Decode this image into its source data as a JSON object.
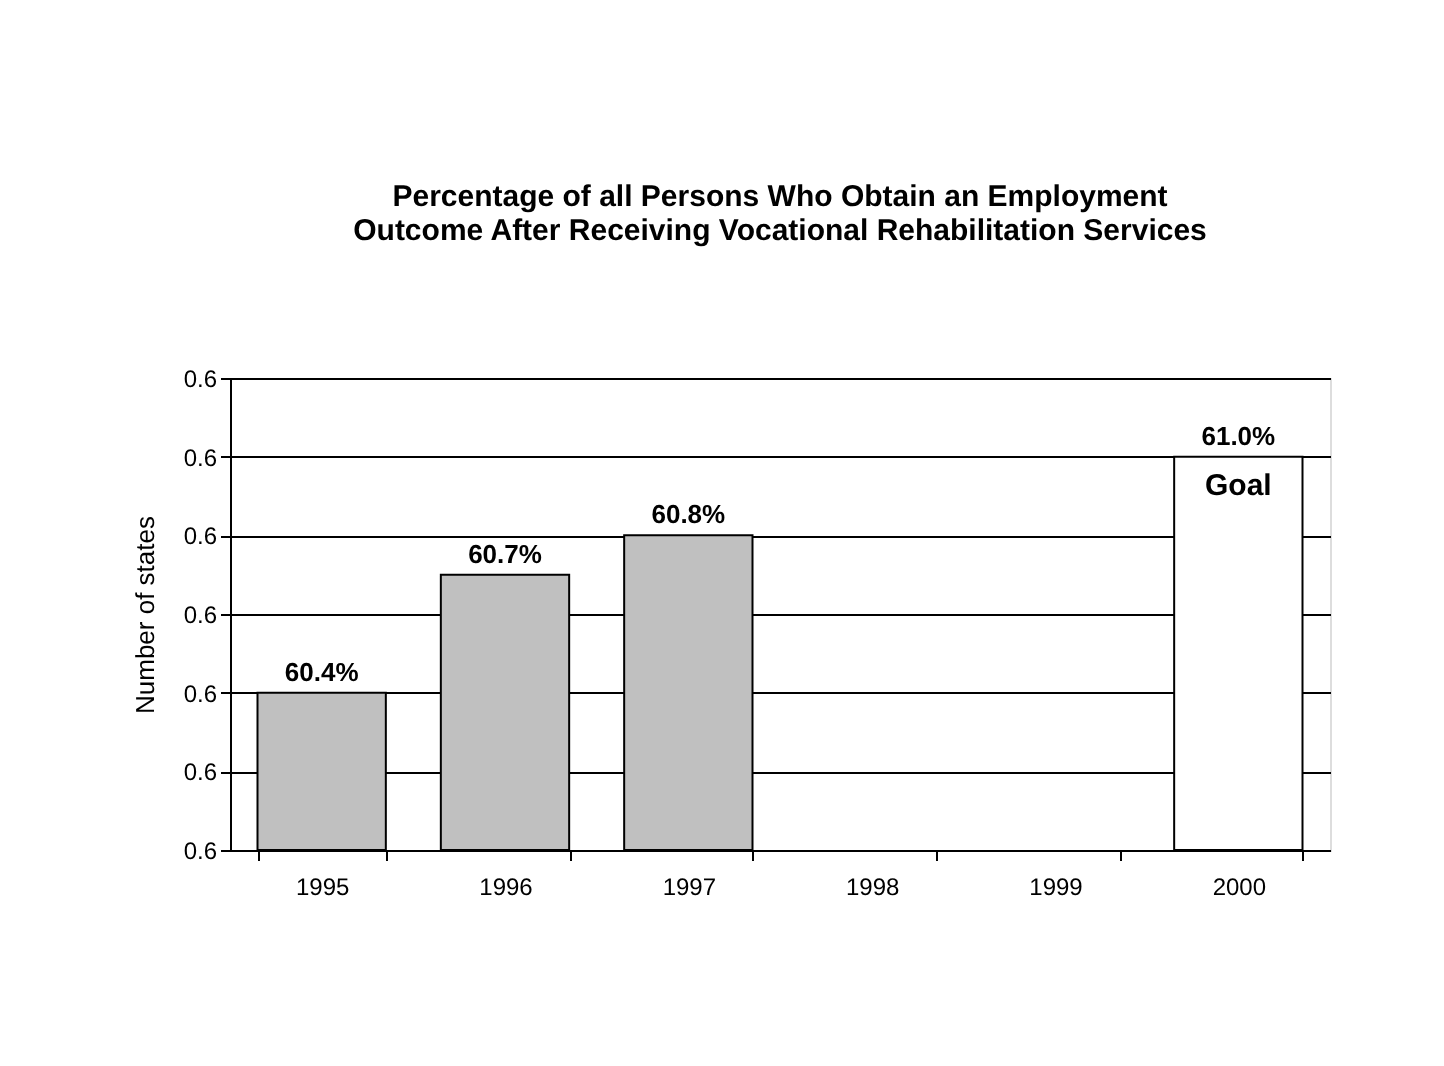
{
  "chart_data": {
    "type": "bar",
    "title": [
      "Percentage of all Persons Who Obtain an Employment",
      "Outcome After Receiving Vocational Rehabilitation Services"
    ],
    "ylabel": "Number of states",
    "categories": [
      "1995",
      "1996",
      "1997",
      "1998",
      "1999",
      "2000"
    ],
    "values": [
      0.604,
      0.607,
      0.608,
      null,
      null,
      0.61
    ],
    "colors": [
      "#c0c0c0",
      "#c0c0c0",
      "#c0c0c0",
      "#c0c0c0",
      "#c0c0c0",
      "#ffffff"
    ],
    "value_labels": [
      "60.4%",
      "60.7%",
      "60.8%",
      null,
      null,
      "61.0%"
    ],
    "annotations": [
      {
        "text": "Goal",
        "x": "2000",
        "y": 0.61
      }
    ],
    "ylim": [
      0.6,
      0.612
    ],
    "yticks": [
      {
        "value": 0.6,
        "label": "0.6"
      },
      {
        "value": 0.602,
        "label": "0.6"
      },
      {
        "value": 0.604,
        "label": "0.6"
      },
      {
        "value": 0.606,
        "label": "0.6"
      },
      {
        "value": 0.608,
        "label": "0.6"
      },
      {
        "value": 0.61,
        "label": "0.6"
      },
      {
        "value": 0.612,
        "label": "0.6"
      }
    ],
    "grid": "y"
  }
}
